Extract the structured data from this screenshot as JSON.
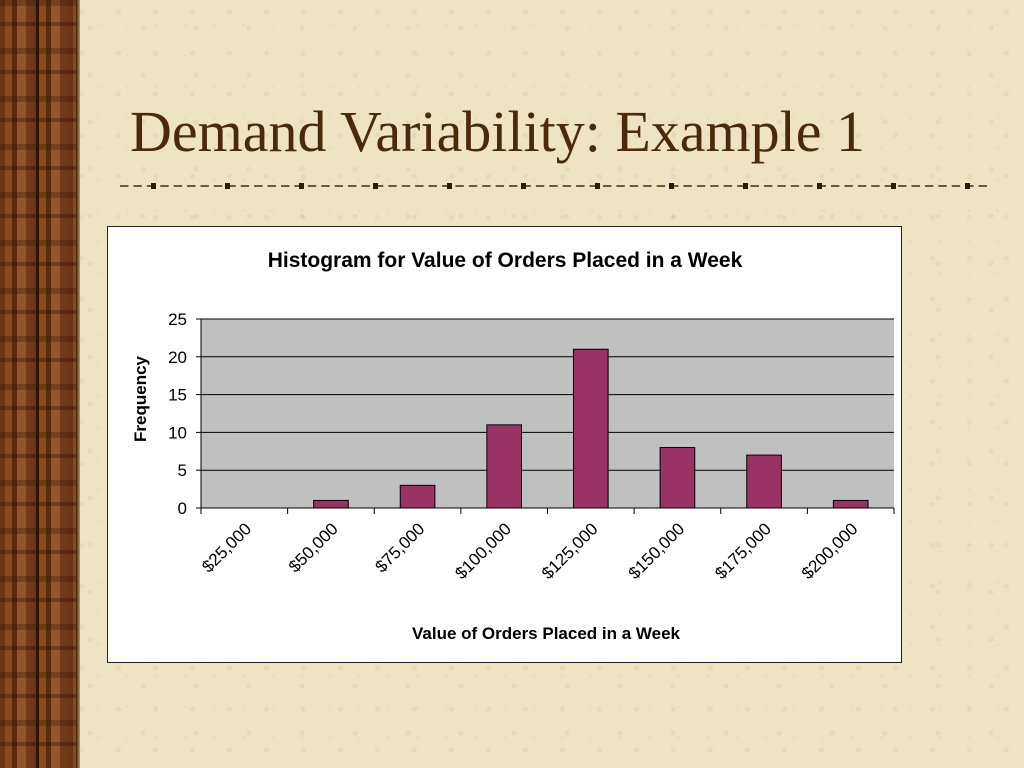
{
  "slide": {
    "title": "Demand Variability: Example 1"
  },
  "chart_data": {
    "type": "bar",
    "title": "Histogram for Value of Orders Placed in a Week",
    "xlabel": "Value of Orders Placed in a Week",
    "ylabel": "Frequency",
    "categories": [
      "$25,000",
      "$50,000",
      "$75,000",
      "$100,000",
      "$125,000",
      "$150,000",
      "$175,000",
      "$200,000"
    ],
    "values": [
      0,
      1,
      3,
      11,
      21,
      8,
      7,
      1
    ],
    "ylim": [
      0,
      25
    ],
    "yticks": [
      0,
      5,
      10,
      15,
      20,
      25
    ],
    "grid": true,
    "legend": "none",
    "colors": {
      "bar_fill": "#993366",
      "bar_stroke": "#000000",
      "plot_background": "#c0c0c0",
      "gridline": "#000000"
    }
  }
}
